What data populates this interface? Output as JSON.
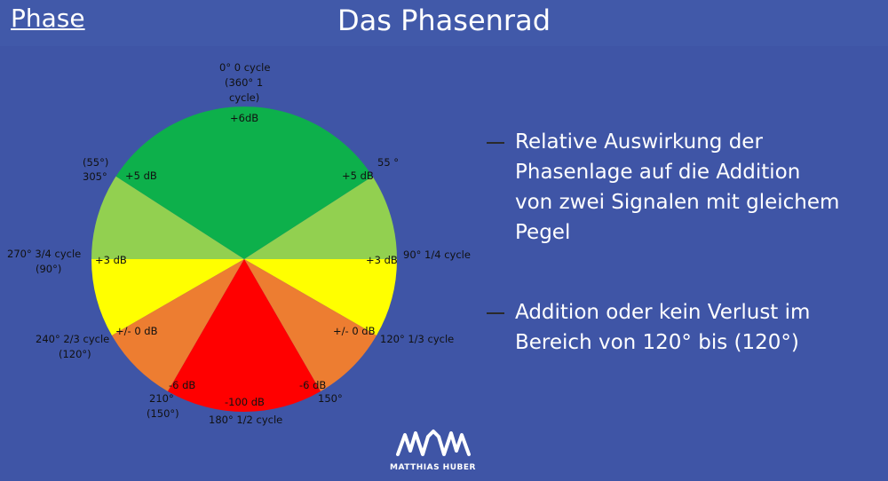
{
  "header": {
    "section_label": "Phase",
    "title": "Das Phasenrad"
  },
  "wheel": {
    "colors": {
      "green": "#0db04b",
      "light_green": "#92d050",
      "yellow": "#ffff00",
      "orange": "#ed7d31",
      "red": "#ff0000"
    },
    "zone_labels": {
      "top": "+6dB",
      "upper_left": "+5 dB",
      "upper_right": "+5 dB",
      "mid_left": "+3 dB",
      "mid_right": "+3 dB",
      "lower_left": "+/- 0 dB",
      "lower_right": "+/- 0 dB",
      "low_left": "-6 dB",
      "low_right": "-6 dB",
      "bottom": "-100 dB"
    },
    "angle_labels": {
      "top_1": "0°  0 cycle",
      "top_2": "(360° 1",
      "top_3": "cycle)",
      "ul_1": "(55°)",
      "ul_2": "305°",
      "ur": "55 °",
      "left_1": "270° 3/4 cycle",
      "left_2": "(90°)",
      "right": "90° 1/4 cycle",
      "ll_1": "240° 2/3 cycle",
      "ll_2": "(120°)",
      "lr": "120° 1/3 cycle",
      "bl_1": "210°",
      "bl_2": "(150°)",
      "br": "150°",
      "bottom": "180° 1/2 cycle"
    }
  },
  "bullets": [
    {
      "lines": [
        "Relative Auswirkung der",
        "Phasenlage auf die Addition",
        "von zwei Signalen mit gleichem",
        "Pegel"
      ]
    },
    {
      "lines": [
        "Addition oder kein Verlust im",
        "Bereich von 120° bis (120°)"
      ]
    }
  ],
  "logo": {
    "text": "MATTHIAS HUBER",
    "icon": "waveform-people-icon"
  }
}
